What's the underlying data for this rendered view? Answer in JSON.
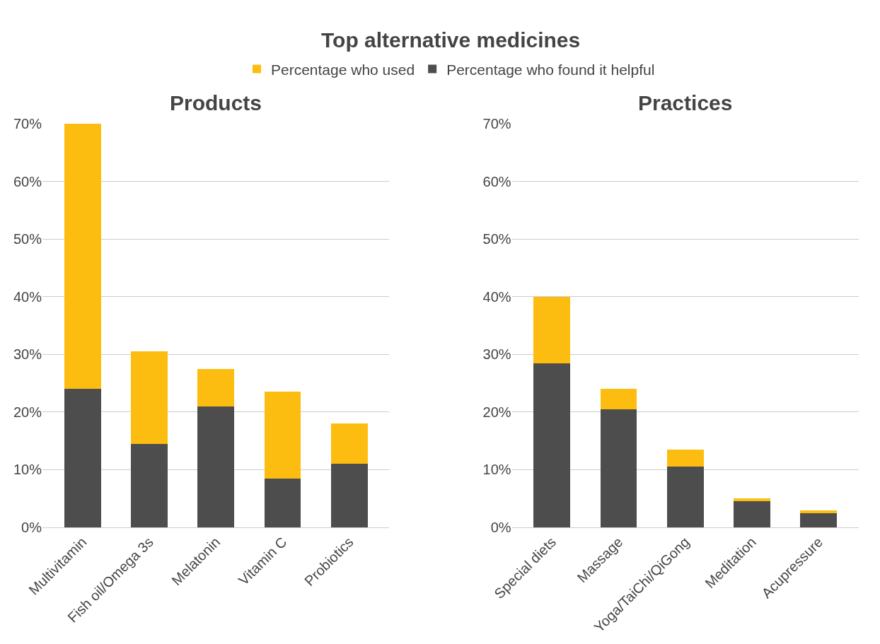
{
  "chart_data": [
    {
      "type": "bar",
      "title": "Products",
      "annotations": [
        "Top alternative medicines"
      ],
      "stacked": true,
      "legend": "top",
      "grid": "y",
      "categories": [
        "Multivitamin",
        "Fish oil/Omega 3s",
        "Melatonin",
        "Vitamin C",
        "Probiotics"
      ],
      "series": [
        {
          "name": "Percentage who found it helpful",
          "color": "#4d4d4d",
          "values": [
            24,
            14.5,
            21,
            8.5,
            11
          ]
        },
        {
          "name": "Percentage who used",
          "color": "#fdbd10",
          "values": [
            46,
            16,
            6.5,
            15,
            7
          ]
        }
      ],
      "ylim": [
        0,
        70
      ],
      "yticks": [
        {
          "value": 0,
          "label": "0%"
        },
        {
          "value": 10,
          "label": "10%"
        },
        {
          "value": 20,
          "label": "20%"
        },
        {
          "value": 30,
          "label": "30%"
        },
        {
          "value": 40,
          "label": "40%"
        },
        {
          "value": 50,
          "label": "50%"
        },
        {
          "value": 60,
          "label": "60%"
        },
        {
          "value": 70,
          "label": "70%"
        }
      ]
    },
    {
      "type": "bar",
      "title": "Practices",
      "stacked": true,
      "grid": "y",
      "categories": [
        "Special diets",
        "Massage",
        "Yoga/TaiChi/QiGong",
        "Meditation",
        "Acupressure"
      ],
      "series": [
        {
          "color": "#4d4d4d",
          "values": [
            28.5,
            20.5,
            10.5,
            4.5,
            2.5
          ]
        },
        {
          "color": "#fdbd10",
          "values": [
            11.5,
            3.5,
            3,
            0.5,
            0.5
          ]
        }
      ],
      "ylim": [
        0,
        70
      ],
      "yticks": [
        {
          "value": 0,
          "label": "0%"
        },
        {
          "value": 10,
          "label": "10%"
        },
        {
          "value": 20,
          "label": "20%"
        },
        {
          "value": 30,
          "label": "30%"
        },
        {
          "value": 40,
          "label": "40%"
        },
        {
          "value": 50,
          "label": "50%"
        },
        {
          "value": 60,
          "label": "60%"
        },
        {
          "value": 70,
          "label": "70%"
        }
      ]
    }
  ]
}
